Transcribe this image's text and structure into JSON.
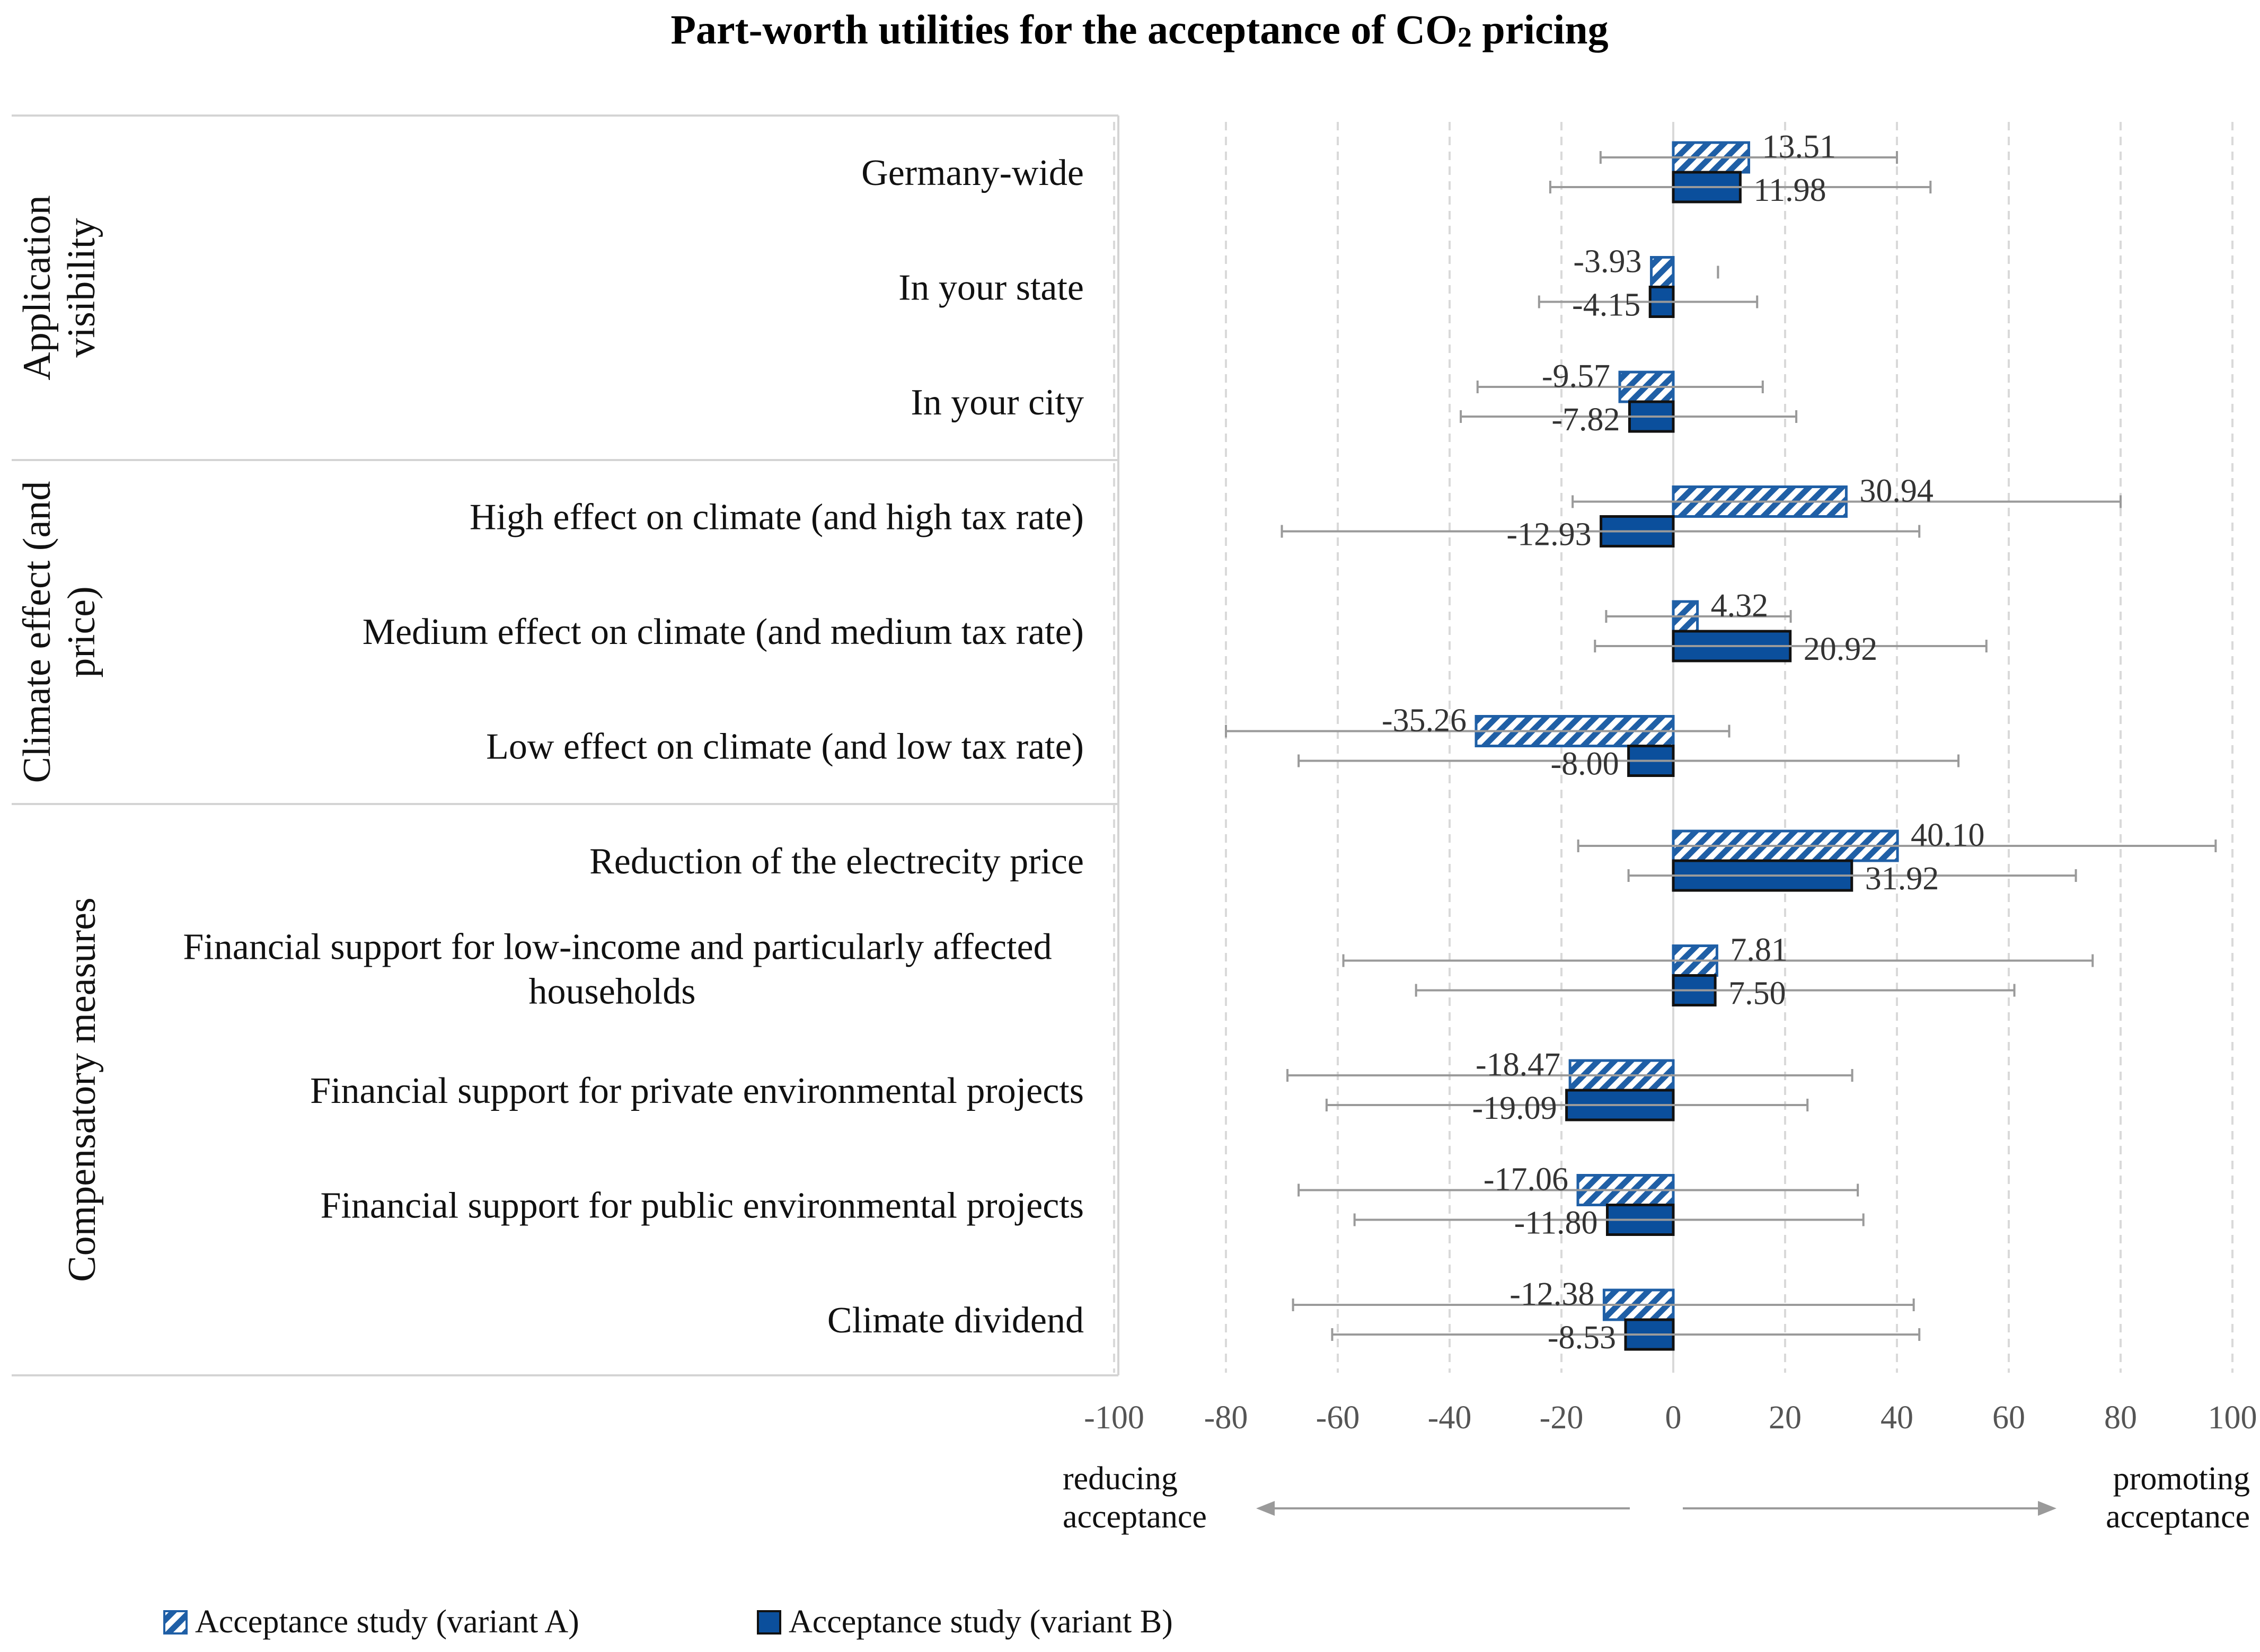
{
  "chart_data": {
    "type": "bar",
    "orientation": "horizontal",
    "title": "Part-worth utilities for the acceptance of CO",
    "title_subscript": "2",
    "title_suffix": " pricing",
    "xlim": [
      -100,
      100
    ],
    "xticks": [
      "-100",
      "-80",
      "-60",
      "-40",
      "-20",
      "0",
      "20",
      "40",
      "60",
      "80",
      "100"
    ],
    "grid": "vertical dashed",
    "groups": [
      {
        "label_lines": [
          "Application",
          "visibility"
        ],
        "start": 0,
        "count": 3
      },
      {
        "label_lines": [
          "Climate effect (and",
          "price)"
        ],
        "start": 3,
        "count": 3
      },
      {
        "label_lines": [
          "Compensatory measures"
        ],
        "start": 6,
        "count": 5
      }
    ],
    "categories": [
      [
        "Germany-wide"
      ],
      [
        "In your state"
      ],
      [
        "In your city"
      ],
      [
        "High effect on climate (and high tax rate)"
      ],
      [
        "Medium effect on climate (and medium tax rate)"
      ],
      [
        "Low effect on climate (and low tax rate)"
      ],
      [
        "Reduction of the electrecity price"
      ],
      [
        "Financial support for low-income and particularly affected",
        "households"
      ],
      [
        "Financial support for private environmental projects"
      ],
      [
        "Financial support for public environmental projects"
      ],
      [
        "Climate dividend"
      ]
    ],
    "series": [
      {
        "name": "Acceptance study (variant A)",
        "pattern": "hatched",
        "color": "#1f5fa6",
        "values": [
          13.51,
          -3.93,
          -9.57,
          30.94,
          4.32,
          -35.26,
          40.1,
          7.81,
          -18.47,
          -17.06,
          -12.38
        ],
        "labels": [
          "13.51",
          "-3.93",
          "-9.57",
          "30.94",
          "4.32",
          "-35.26",
          "40.10",
          "7.81",
          "-18.47",
          "-17.06",
          "-12.38"
        ],
        "error_low": [
          -13,
          8,
          -35,
          -18,
          -12,
          -80,
          -17,
          -59,
          -69,
          -67,
          -68
        ],
        "error_high": [
          40,
          8,
          16,
          80,
          21,
          10,
          97,
          75,
          32,
          33,
          43
        ]
      },
      {
        "name": "Acceptance study (variant B)",
        "pattern": "solid",
        "color": "#0b4f9c",
        "values": [
          11.98,
          -4.15,
          -7.82,
          -12.93,
          20.92,
          -8.0,
          31.92,
          7.5,
          -19.09,
          -11.8,
          -8.53
        ],
        "labels": [
          "11.98",
          "-4.15",
          "-7.82",
          "-12.93",
          "20.92",
          "-8.00",
          "31.92",
          "7.50",
          "-19.09",
          "-11.80",
          "-8.53"
        ],
        "error_low": [
          -22,
          -24,
          -38,
          -70,
          -14,
          -67,
          -8,
          -46,
          -62,
          -57,
          -61
        ],
        "error_high": [
          46,
          15,
          22,
          44,
          56,
          51,
          72,
          61,
          24,
          34,
          44
        ]
      }
    ],
    "annotations": {
      "left_lines": [
        "reducing",
        "acceptance"
      ],
      "right_lines": [
        "promoting",
        "acceptance"
      ]
    }
  }
}
